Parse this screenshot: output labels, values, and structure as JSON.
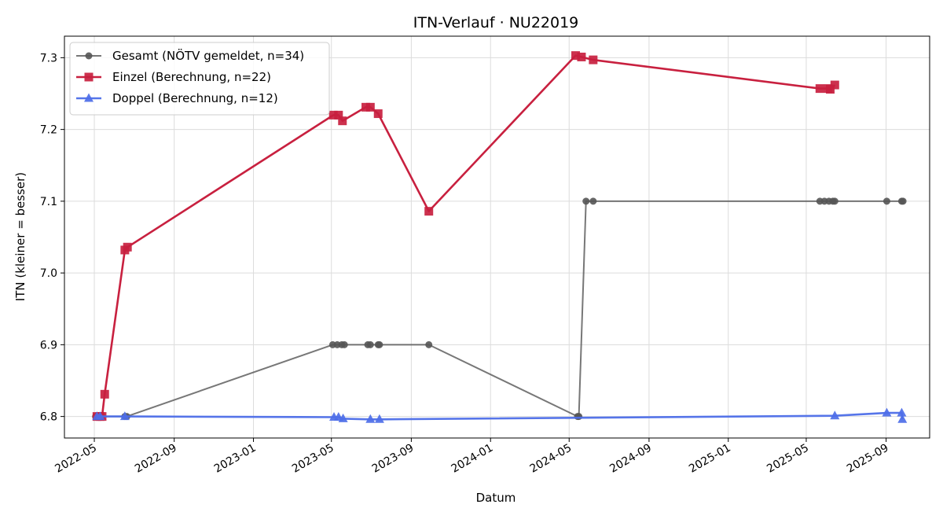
{
  "chart_data": {
    "type": "line",
    "title": "ITN-Verlauf · NU22019",
    "xlabel": "Datum",
    "ylabel": "ITN  (kleiner = besser)",
    "x_axis_type": "date",
    "xlim": [
      "2022-03-16",
      "2025-11-07"
    ],
    "ylim": [
      6.77,
      7.33
    ],
    "grid": true,
    "legend_position": "top-left",
    "x_ticks": [
      "2022-05-01",
      "2022-09-01",
      "2023-01-01",
      "2023-05-01",
      "2023-09-01",
      "2024-01-01",
      "2024-05-01",
      "2024-09-01",
      "2025-01-01",
      "2025-05-01",
      "2025-09-01"
    ],
    "x_tick_labels": [
      "2022-05",
      "2022-09",
      "2023-01",
      "2023-05",
      "2023-09",
      "2024-01",
      "2024-05",
      "2024-09",
      "2025-01",
      "2025-05",
      "2025-09"
    ],
    "y_ticks": [
      6.8,
      6.9,
      7.0,
      7.1,
      7.2,
      7.3
    ],
    "y_tick_labels": [
      "6.8",
      "6.9",
      "7.0",
      "7.1",
      "7.2",
      "7.3"
    ],
    "series": [
      {
        "name": "Gesamt (NÖTV gemeldet, n=34)",
        "color": "#555555",
        "marker": "circle",
        "points": [
          [
            "2022-05-03",
            6.8
          ],
          [
            "2022-05-05",
            6.8
          ],
          [
            "2022-05-08",
            6.8
          ],
          [
            "2022-05-10",
            6.8
          ],
          [
            "2022-05-12",
            6.8
          ],
          [
            "2022-06-17",
            6.8
          ],
          [
            "2022-06-20",
            6.8
          ],
          [
            "2023-05-03",
            6.9
          ],
          [
            "2023-05-10",
            6.9
          ],
          [
            "2023-05-17",
            6.9
          ],
          [
            "2023-05-21",
            6.9
          ],
          [
            "2023-06-26",
            6.9
          ],
          [
            "2023-06-30",
            6.9
          ],
          [
            "2023-07-12",
            6.9
          ],
          [
            "2023-07-14",
            6.9
          ],
          [
            "2023-09-28",
            6.9
          ],
          [
            "2024-05-14",
            6.8
          ],
          [
            "2024-05-16",
            6.8
          ],
          [
            "2024-05-27",
            7.1
          ],
          [
            "2024-06-07",
            7.1
          ],
          [
            "2025-05-22",
            7.1
          ],
          [
            "2025-05-29",
            7.1
          ],
          [
            "2025-06-05",
            7.1
          ],
          [
            "2025-06-11",
            7.1
          ],
          [
            "2025-06-14",
            7.1
          ],
          [
            "2025-09-02",
            7.1
          ],
          [
            "2025-09-25",
            7.1
          ],
          [
            "2025-09-27",
            7.1
          ]
        ]
      },
      {
        "name": "Einzel (Berechnung, n=22)",
        "color": "#c8203f",
        "marker": "square",
        "points": [
          [
            "2022-05-05",
            6.8
          ],
          [
            "2022-05-10",
            6.8
          ],
          [
            "2022-05-13",
            6.8
          ],
          [
            "2022-05-17",
            6.831
          ],
          [
            "2022-06-17",
            7.032
          ],
          [
            "2022-06-21",
            7.036
          ],
          [
            "2023-05-04",
            7.22
          ],
          [
            "2023-05-12",
            7.22
          ],
          [
            "2023-05-18",
            7.212
          ],
          [
            "2023-06-23",
            7.231
          ],
          [
            "2023-06-30",
            7.231
          ],
          [
            "2023-07-12",
            7.222
          ],
          [
            "2023-09-28",
            7.086
          ],
          [
            "2024-05-11",
            7.303
          ],
          [
            "2024-05-20",
            7.301
          ],
          [
            "2024-06-07",
            7.297
          ],
          [
            "2025-05-22",
            7.257
          ],
          [
            "2025-06-04",
            7.257
          ],
          [
            "2025-06-07",
            7.256
          ],
          [
            "2025-06-14",
            7.262
          ]
        ]
      },
      {
        "name": "Doppel (Berechnung, n=12)",
        "color": "#4d6ee8",
        "marker": "triangle",
        "points": [
          [
            "2022-05-05",
            6.8
          ],
          [
            "2022-05-10",
            6.8
          ],
          [
            "2022-06-17",
            6.8
          ],
          [
            "2023-05-05",
            6.799
          ],
          [
            "2023-05-12",
            6.799
          ],
          [
            "2023-05-19",
            6.797
          ],
          [
            "2023-06-30",
            6.796
          ],
          [
            "2023-07-14",
            6.796
          ],
          [
            "2025-06-14",
            6.801
          ],
          [
            "2025-09-02",
            6.805
          ],
          [
            "2025-09-25",
            6.805
          ],
          [
            "2025-09-26",
            6.796
          ]
        ]
      }
    ]
  }
}
